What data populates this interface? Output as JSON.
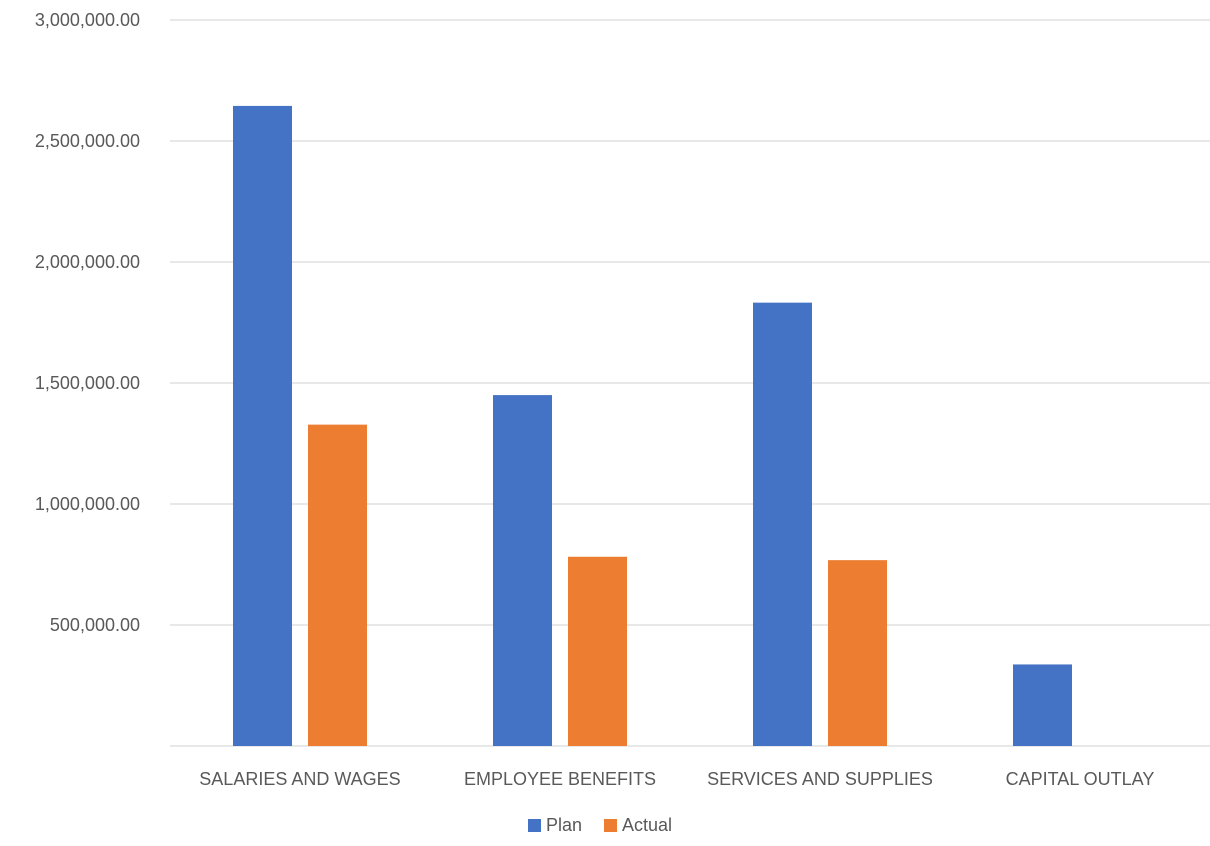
{
  "chart_data": {
    "type": "bar",
    "title": "",
    "xlabel": "",
    "ylabel": "",
    "categories": [
      "SALARIES AND WAGES",
      "EMPLOYEE BENEFITS",
      "SERVICES AND SUPPLIES",
      "CAPITAL OUTLAY"
    ],
    "series": [
      {
        "name": "Plan",
        "color": "#4472C4",
        "values": [
          2645000,
          1450000,
          1832000,
          337000
        ]
      },
      {
        "name": "Actual",
        "color": "#ED7D31",
        "values": [
          1328000,
          782000,
          768000,
          0
        ]
      }
    ],
    "ylim": [
      0,
      3000000
    ],
    "yticks": [
      {
        "value": 500000,
        "label": "500,000.00"
      },
      {
        "value": 1000000,
        "label": "1,000,000.00"
      },
      {
        "value": 1500000,
        "label": "1,500,000.00"
      },
      {
        "value": 2000000,
        "label": "2,000,000.00"
      },
      {
        "value": 2500000,
        "label": "2,500,000.00"
      },
      {
        "value": 3000000,
        "label": "3,000,000.00"
      }
    ],
    "grid": true,
    "legend_position": "bottom-center"
  }
}
